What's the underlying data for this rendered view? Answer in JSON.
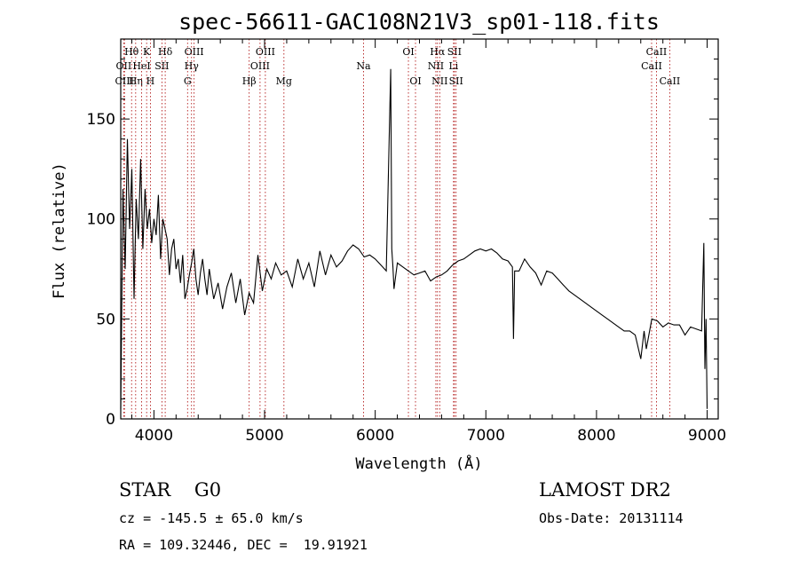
{
  "chart_data": {
    "type": "line",
    "title": "spec-56611-GAC108N21V3_sp01-118.fits",
    "xlabel": "Wavelength (Å)",
    "ylabel": "Flux (relative)",
    "xlim": [
      3700,
      9100
    ],
    "ylim": [
      0,
      190
    ],
    "xticks": [
      "4000",
      "5000",
      "6000",
      "7000",
      "8000",
      "9000"
    ],
    "yticks": [
      "0",
      "50",
      "100",
      "150"
    ],
    "line_color": "#000000",
    "marker_color": "#aa0000",
    "series": [
      {
        "x": [
          3700,
          3720,
          3740,
          3760,
          3780,
          3800,
          3820,
          3840,
          3860,
          3880,
          3900,
          3920,
          3940,
          3960,
          3980,
          4000,
          4020,
          4040,
          4060,
          4080,
          4100,
          4120,
          4140,
          4160,
          4180,
          4200,
          4220,
          4240,
          4260,
          4280,
          4300,
          4320,
          4340,
          4360,
          4380,
          4400,
          4420,
          4440,
          4460,
          4480,
          4500,
          4540,
          4580,
          4620,
          4660,
          4700,
          4740,
          4780,
          4820,
          4860,
          4900,
          4940,
          4980,
          5020,
          5060,
          5100,
          5150,
          5200,
          5250,
          5300,
          5350,
          5400,
          5450,
          5500,
          5550,
          5600,
          5650,
          5700,
          5750,
          5800,
          5850,
          5900,
          5950,
          6000,
          6050,
          6100,
          6140,
          6150,
          6160,
          6170,
          6200,
          6250,
          6300,
          6350,
          6400,
          6450,
          6500,
          6550,
          6600,
          6650,
          6700,
          6750,
          6800,
          6850,
          6900,
          6950,
          7000,
          7050,
          7100,
          7150,
          7200,
          7240,
          7250,
          7260,
          7300,
          7350,
          7400,
          7450,
          7500,
          7550,
          7600,
          7650,
          7700,
          7750,
          7800,
          7850,
          7900,
          7950,
          8000,
          8050,
          8100,
          8150,
          8200,
          8250,
          8300,
          8350,
          8400,
          8430,
          8450,
          8500,
          8550,
          8600,
          8650,
          8700,
          8750,
          8800,
          8850,
          8900,
          8950,
          8970,
          8980,
          8990,
          9000
        ],
        "y": [
          5,
          115,
          75,
          140,
          95,
          125,
          60,
          110,
          90,
          130,
          85,
          115,
          95,
          105,
          88,
          100,
          92,
          112,
          80,
          100,
          95,
          90,
          72,
          85,
          90,
          75,
          80,
          68,
          82,
          60,
          65,
          72,
          78,
          85,
          70,
          62,
          73,
          80,
          70,
          62,
          75,
          60,
          68,
          55,
          66,
          73,
          58,
          70,
          52,
          63,
          58,
          82,
          64,
          75,
          70,
          78,
          72,
          74,
          66,
          80,
          70,
          78,
          66,
          84,
          72,
          82,
          76,
          79,
          84,
          87,
          85,
          81,
          82,
          80,
          77,
          74,
          175,
          85,
          76,
          65,
          78,
          76,
          74,
          72,
          73,
          74,
          69,
          71,
          72,
          74,
          77,
          79,
          80,
          82,
          84,
          85,
          84,
          85,
          83,
          80,
          79,
          76,
          40,
          74,
          74,
          80,
          76,
          73,
          67,
          74,
          73,
          70,
          67,
          64,
          62,
          60,
          58,
          56,
          54,
          52,
          50,
          48,
          46,
          44,
          44,
          42,
          30,
          44,
          35,
          50,
          49,
          46,
          48,
          47,
          47,
          42,
          46,
          45,
          44,
          88,
          25,
          50,
          5
        ]
      }
    ],
    "lines": [
      {
        "name": "Hθ",
        "x": 3798,
        "row": 1
      },
      {
        "name": "OII",
        "x": 3727,
        "row": 2
      },
      {
        "name": "CIII",
        "x": 3734,
        "row": 3
      },
      {
        "name": "Hη",
        "x": 3835,
        "row": 3
      },
      {
        "name": "HeI",
        "x": 3889,
        "row": 2
      },
      {
        "name": "K",
        "x": 3934,
        "row": 1
      },
      {
        "name": "SII",
        "x": 4072,
        "row": 2
      },
      {
        "name": "H",
        "x": 3968,
        "row": 3
      },
      {
        "name": "Hδ",
        "x": 4102,
        "row": 1
      },
      {
        "name": "OIII",
        "x": 4363,
        "row": 1
      },
      {
        "name": "Hγ",
        "x": 4340,
        "row": 2
      },
      {
        "name": "G",
        "x": 4304,
        "row": 3
      },
      {
        "name": "OIII",
        "x": 5007,
        "row": 1
      },
      {
        "name": "OIII",
        "x": 4959,
        "row": 2
      },
      {
        "name": "Hβ",
        "x": 4861,
        "row": 3
      },
      {
        "name": "Mg",
        "x": 5175,
        "row": 3
      },
      {
        "name": "Na",
        "x": 5894,
        "row": 2
      },
      {
        "name": "OI",
        "x": 6300,
        "row": 1
      },
      {
        "name": "OI",
        "x": 6364,
        "row": 3
      },
      {
        "name": "Hα",
        "x": 6563,
        "row": 1
      },
      {
        "name": "SII",
        "x": 6716,
        "row": 1
      },
      {
        "name": "NII",
        "x": 6548,
        "row": 2
      },
      {
        "name": "Li",
        "x": 6708,
        "row": 2
      },
      {
        "name": "NII",
        "x": 6583,
        "row": 3
      },
      {
        "name": "SII",
        "x": 6731,
        "row": 3
      },
      {
        "name": "CaII",
        "x": 8542,
        "row": 1
      },
      {
        "name": "CaII",
        "x": 8498,
        "row": 2
      },
      {
        "name": "CaII",
        "x": 8662,
        "row": 3
      }
    ]
  },
  "info": {
    "classification": "STAR    G0",
    "survey": "LAMOST DR2",
    "velocity": "cz = -145.5 ± 65.0 km/s",
    "obs_date": "Obs-Date: 20131114",
    "coords": "RA = 109.32446, DEC =  19.91921"
  }
}
